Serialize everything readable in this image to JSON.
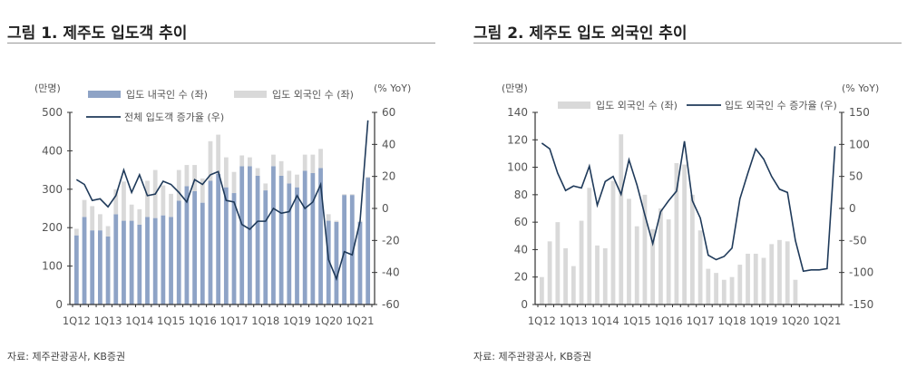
{
  "colors": {
    "domestic": "#8ea3c6",
    "foreign": "#d9d9d9",
    "line": "#1f3a5a",
    "axis": "#333333"
  },
  "chart_data": [
    {
      "type": "bar+line",
      "title": "그림 1. 제주도 입도객 추이",
      "left_unit": "(만명)",
      "right_unit": "(% YoY)",
      "ylim_left": [
        0,
        500
      ],
      "yticks_left": [
        0,
        100,
        200,
        300,
        400,
        500
      ],
      "ylim_right": [
        -60,
        60
      ],
      "yticks_right": [
        -60,
        -40,
        -20,
        0,
        20,
        40,
        60
      ],
      "xtick_labels": [
        "1Q12",
        "1Q13",
        "1Q14",
        "1Q15",
        "1Q16",
        "1Q17",
        "1Q18",
        "1Q19",
        "1Q20",
        "1Q21"
      ],
      "categories": [
        "1Q12",
        "2Q12",
        "3Q12",
        "4Q12",
        "1Q13",
        "2Q13",
        "3Q13",
        "4Q13",
        "1Q14",
        "2Q14",
        "3Q14",
        "4Q14",
        "1Q15",
        "2Q15",
        "3Q15",
        "4Q15",
        "1Q16",
        "2Q16",
        "3Q16",
        "4Q16",
        "1Q17",
        "2Q17",
        "3Q17",
        "4Q17",
        "1Q18",
        "2Q18",
        "3Q18",
        "4Q18",
        "1Q19",
        "2Q19",
        "3Q19",
        "4Q19",
        "1Q20",
        "2Q20",
        "3Q20",
        "4Q20",
        "1Q21",
        "2Q21"
      ],
      "series": [
        {
          "name": "입도 내국인 수 (좌)",
          "type": "bar",
          "values": [
            180,
            228,
            193,
            193,
            177,
            235,
            218,
            218,
            208,
            228,
            225,
            232,
            228,
            270,
            308,
            295,
            265,
            322,
            340,
            305,
            290,
            360,
            360,
            335,
            297,
            360,
            335,
            315,
            305,
            348,
            342,
            355,
            218,
            215,
            285,
            285,
            215,
            330
          ]
        },
        {
          "name": "입도 외국인 수 (좌)",
          "type": "bar-stacked",
          "values": [
            17,
            44,
            63,
            42,
            27,
            65,
            102,
            42,
            40,
            94,
            125,
            78,
            60,
            80,
            55,
            68,
            63,
            103,
            102,
            78,
            55,
            28,
            23,
            20,
            18,
            30,
            38,
            33,
            33,
            42,
            48,
            50,
            17,
            3,
            2,
            2,
            3,
            2
          ]
        },
        {
          "name": "전체 입도객 증가율 (우)",
          "type": "line",
          "values": [
            18,
            15,
            5,
            6,
            1,
            8,
            24,
            10,
            21,
            8,
            9,
            17,
            15,
            10,
            4,
            18,
            15,
            21,
            23,
            5,
            4,
            -10,
            -13,
            -8,
            -8,
            0,
            -3,
            -2,
            8,
            0,
            4,
            15,
            -32,
            -44,
            -27,
            -29,
            -8,
            55
          ]
        }
      ]
    },
    {
      "type": "bar+line",
      "title": "그림 2. 제주도 입도 외국인 추이",
      "left_unit": "(만명)",
      "right_unit": "(% YoY)",
      "ylim_left": [
        0,
        140
      ],
      "yticks_left": [
        0,
        20,
        40,
        60,
        80,
        100,
        120,
        140
      ],
      "ylim_right": [
        -150,
        150
      ],
      "yticks_right": [
        -150,
        -100,
        -50,
        0,
        50,
        100,
        150
      ],
      "xtick_labels": [
        "1Q12",
        "1Q13",
        "1Q14",
        "1Q15",
        "1Q16",
        "1Q17",
        "1Q18",
        "1Q19",
        "1Q20",
        "1Q21"
      ],
      "categories": [
        "1Q12",
        "2Q12",
        "3Q12",
        "4Q12",
        "1Q13",
        "2Q13",
        "3Q13",
        "4Q13",
        "1Q14",
        "2Q14",
        "3Q14",
        "4Q14",
        "1Q15",
        "2Q15",
        "3Q15",
        "4Q15",
        "1Q16",
        "2Q16",
        "3Q16",
        "4Q16",
        "1Q17",
        "2Q17",
        "3Q17",
        "4Q17",
        "1Q18",
        "2Q18",
        "3Q18",
        "4Q18",
        "1Q19",
        "2Q19",
        "3Q19",
        "4Q19",
        "1Q20",
        "2Q20",
        "3Q20",
        "4Q20",
        "1Q21",
        "2Q21"
      ],
      "series": [
        {
          "name": "입도 외국인 수 (좌)",
          "type": "bar",
          "values": [
            20,
            46,
            60,
            41,
            28,
            61,
            85,
            43,
            41,
            90,
            124,
            77,
            57,
            80,
            55,
            70,
            62,
            103,
            102,
            80,
            54,
            26,
            23,
            18,
            20,
            29,
            37,
            37,
            34,
            44,
            47,
            46,
            18,
            1,
            0.5,
            0.5,
            0.5,
            0.5
          ]
        },
        {
          "name": "입도 외국인 수 증가율 (우)",
          "type": "line",
          "values": [
            102,
            93,
            55,
            28,
            35,
            32,
            66,
            5,
            42,
            50,
            22,
            76,
            37,
            -10,
            -55,
            -5,
            12,
            27,
            105,
            12,
            -15,
            -73,
            -80,
            -75,
            -62,
            15,
            55,
            93,
            77,
            50,
            30,
            25,
            -50,
            -98,
            -96,
            -96,
            -94,
            97
          ]
        }
      ]
    }
  ],
  "source": "자료: 제주관광공사, KB증권"
}
